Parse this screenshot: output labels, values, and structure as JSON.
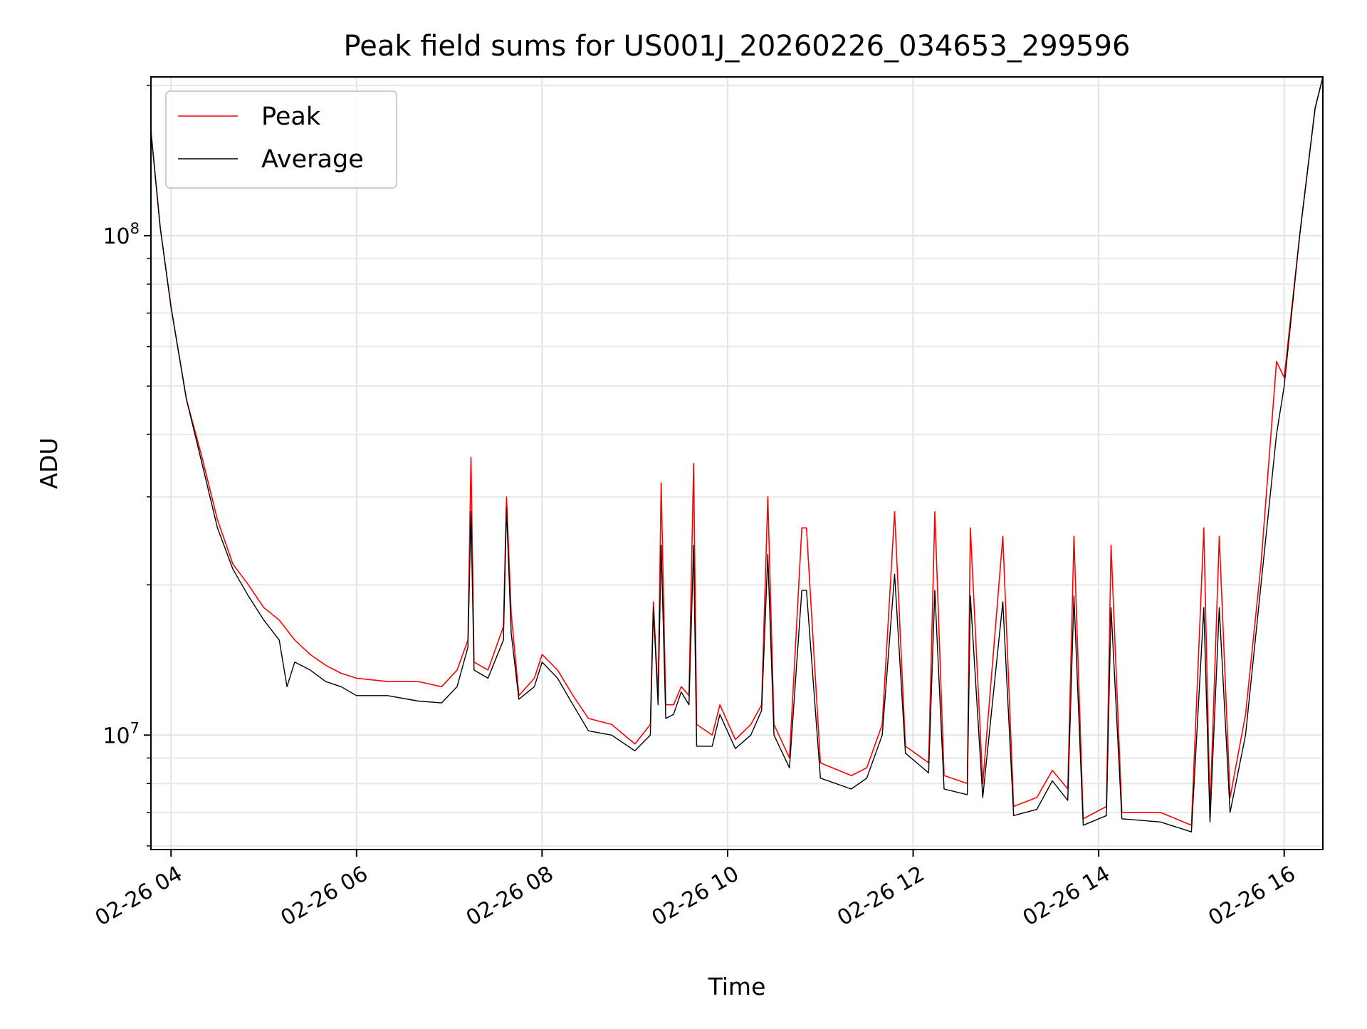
{
  "chart_data": {
    "type": "line",
    "title": "Peak field sums for US001J_20260226_034653_299596",
    "xlabel": "Time",
    "ylabel": "ADU",
    "x_scale": "time",
    "y_scale": "log",
    "xlim": [
      "2026-02-26T03:47",
      "2026-02-26T16:25"
    ],
    "ylim": [
      5900000,
      208000000
    ],
    "grid": true,
    "legend_position": "upper-left",
    "x_tick_labels": [
      {
        "t": "2026-02-26T04:00",
        "label": "02-26 04"
      },
      {
        "t": "2026-02-26T06:00",
        "label": "02-26 06"
      },
      {
        "t": "2026-02-26T08:00",
        "label": "02-26 08"
      },
      {
        "t": "2026-02-26T10:00",
        "label": "02-26 10"
      },
      {
        "t": "2026-02-26T12:00",
        "label": "02-26 12"
      },
      {
        "t": "2026-02-26T14:00",
        "label": "02-26 14"
      },
      {
        "t": "2026-02-26T16:00",
        "label": "02-26 16"
      }
    ],
    "y_major_ticks": [
      {
        "value": 10000000,
        "base": "10",
        "exp": "7"
      },
      {
        "value": 100000000,
        "base": "10",
        "exp": "8"
      }
    ],
    "y_minor_ticks": [
      6000000,
      7000000,
      8000000,
      9000000,
      20000000,
      30000000,
      40000000,
      50000000,
      60000000,
      70000000,
      80000000,
      90000000,
      200000000
    ],
    "series": [
      {
        "name": "Peak",
        "color": "#ff0000",
        "points": [
          [
            "2026-02-26T03:47",
            162000000
          ],
          [
            "2026-02-26T03:53",
            104000000
          ],
          [
            "2026-02-26T04:00",
            72000000
          ],
          [
            "2026-02-26T04:10",
            47000000
          ],
          [
            "2026-02-26T04:20",
            36000000
          ],
          [
            "2026-02-26T04:30",
            27000000
          ],
          [
            "2026-02-26T04:40",
            22000000
          ],
          [
            "2026-02-26T04:50",
            20000000
          ],
          [
            "2026-02-26T05:00",
            18000000
          ],
          [
            "2026-02-26T05:10",
            17000000
          ],
          [
            "2026-02-26T05:20",
            15500000
          ],
          [
            "2026-02-26T05:30",
            14500000
          ],
          [
            "2026-02-26T05:40",
            13800000
          ],
          [
            "2026-02-26T05:50",
            13300000
          ],
          [
            "2026-02-26T06:00",
            13000000
          ],
          [
            "2026-02-26T06:20",
            12800000
          ],
          [
            "2026-02-26T06:40",
            12800000
          ],
          [
            "2026-02-26T06:55",
            12500000
          ],
          [
            "2026-02-26T07:05",
            13500000
          ],
          [
            "2026-02-26T07:12",
            15500000
          ],
          [
            "2026-02-26T07:14",
            36000000
          ],
          [
            "2026-02-26T07:16",
            14000000
          ],
          [
            "2026-02-26T07:25",
            13500000
          ],
          [
            "2026-02-26T07:35",
            16500000
          ],
          [
            "2026-02-26T07:37",
            30000000
          ],
          [
            "2026-02-26T07:40",
            17500000
          ],
          [
            "2026-02-26T07:45",
            12000000
          ],
          [
            "2026-02-26T07:55",
            13000000
          ],
          [
            "2026-02-26T08:00",
            14500000
          ],
          [
            "2026-02-26T08:10",
            13500000
          ],
          [
            "2026-02-26T08:20",
            12000000
          ],
          [
            "2026-02-26T08:30",
            10800000
          ],
          [
            "2026-02-26T08:45",
            10500000
          ],
          [
            "2026-02-26T09:00",
            9600000
          ],
          [
            "2026-02-26T09:10",
            10500000
          ],
          [
            "2026-02-26T09:12",
            18500000
          ],
          [
            "2026-02-26T09:15",
            12000000
          ],
          [
            "2026-02-26T09:17",
            32000000
          ],
          [
            "2026-02-26T09:20",
            11500000
          ],
          [
            "2026-02-26T09:25",
            11500000
          ],
          [
            "2026-02-26T09:30",
            12500000
          ],
          [
            "2026-02-26T09:35",
            12000000
          ],
          [
            "2026-02-26T09:38",
            35000000
          ],
          [
            "2026-02-26T09:40",
            10500000
          ],
          [
            "2026-02-26T09:50",
            10000000
          ],
          [
            "2026-02-26T09:55",
            11500000
          ],
          [
            "2026-02-26T10:05",
            9800000
          ],
          [
            "2026-02-26T10:15",
            10500000
          ],
          [
            "2026-02-26T10:22",
            11500000
          ],
          [
            "2026-02-26T10:26",
            30000000
          ],
          [
            "2026-02-26T10:30",
            10500000
          ],
          [
            "2026-02-26T10:40",
            9000000
          ],
          [
            "2026-02-26T10:48",
            26000000
          ],
          [
            "2026-02-26T10:51",
            26000000
          ],
          [
            "2026-02-26T11:00",
            8800000
          ],
          [
            "2026-02-26T11:20",
            8300000
          ],
          [
            "2026-02-26T11:30",
            8600000
          ],
          [
            "2026-02-26T11:40",
            10500000
          ],
          [
            "2026-02-26T11:48",
            28000000
          ],
          [
            "2026-02-26T11:55",
            9500000
          ],
          [
            "2026-02-26T12:10",
            8800000
          ],
          [
            "2026-02-26T12:14",
            28000000
          ],
          [
            "2026-02-26T12:20",
            8300000
          ],
          [
            "2026-02-26T12:35",
            8000000
          ],
          [
            "2026-02-26T12:37",
            26000000
          ],
          [
            "2026-02-26T12:45",
            8000000
          ],
          [
            "2026-02-26T12:58",
            25000000
          ],
          [
            "2026-02-26T13:05",
            7200000
          ],
          [
            "2026-02-26T13:20",
            7500000
          ],
          [
            "2026-02-26T13:30",
            8500000
          ],
          [
            "2026-02-26T13:40",
            7800000
          ],
          [
            "2026-02-26T13:44",
            25000000
          ],
          [
            "2026-02-26T13:50",
            6800000
          ],
          [
            "2026-02-26T14:05",
            7200000
          ],
          [
            "2026-02-26T14:08",
            24000000
          ],
          [
            "2026-02-26T14:15",
            7000000
          ],
          [
            "2026-02-26T14:40",
            7000000
          ],
          [
            "2026-02-26T15:00",
            6600000
          ],
          [
            "2026-02-26T15:08",
            26000000
          ],
          [
            "2026-02-26T15:12",
            7000000
          ],
          [
            "2026-02-26T15:18",
            25000000
          ],
          [
            "2026-02-26T15:25",
            7500000
          ],
          [
            "2026-02-26T15:35",
            11000000
          ],
          [
            "2026-02-26T15:45",
            22000000
          ],
          [
            "2026-02-26T15:55",
            56000000
          ],
          [
            "2026-02-26T16:00",
            52000000
          ],
          [
            "2026-02-26T16:10",
            100000000
          ],
          [
            "2026-02-26T16:20",
            180000000
          ],
          [
            "2026-02-26T16:25",
            208000000
          ]
        ]
      },
      {
        "name": "Average",
        "color": "#000000",
        "points": [
          [
            "2026-02-26T03:47",
            162000000
          ],
          [
            "2026-02-26T03:53",
            104000000
          ],
          [
            "2026-02-26T04:00",
            72000000
          ],
          [
            "2026-02-26T04:10",
            47000000
          ],
          [
            "2026-02-26T04:20",
            35000000
          ],
          [
            "2026-02-26T04:30",
            26000000
          ],
          [
            "2026-02-26T04:40",
            21500000
          ],
          [
            "2026-02-26T04:50",
            19000000
          ],
          [
            "2026-02-26T05:00",
            17000000
          ],
          [
            "2026-02-26T05:10",
            15500000
          ],
          [
            "2026-02-26T05:15",
            12500000
          ],
          [
            "2026-02-26T05:20",
            14000000
          ],
          [
            "2026-02-26T05:30",
            13500000
          ],
          [
            "2026-02-26T05:40",
            12800000
          ],
          [
            "2026-02-26T05:50",
            12500000
          ],
          [
            "2026-02-26T06:00",
            12000000
          ],
          [
            "2026-02-26T06:20",
            12000000
          ],
          [
            "2026-02-26T06:40",
            11700000
          ],
          [
            "2026-02-26T06:55",
            11600000
          ],
          [
            "2026-02-26T07:05",
            12500000
          ],
          [
            "2026-02-26T07:12",
            15000000
          ],
          [
            "2026-02-26T07:14",
            28000000
          ],
          [
            "2026-02-26T07:16",
            13500000
          ],
          [
            "2026-02-26T07:25",
            13000000
          ],
          [
            "2026-02-26T07:35",
            15500000
          ],
          [
            "2026-02-26T07:37",
            28500000
          ],
          [
            "2026-02-26T07:40",
            16000000
          ],
          [
            "2026-02-26T07:45",
            11800000
          ],
          [
            "2026-02-26T07:55",
            12500000
          ],
          [
            "2026-02-26T08:00",
            14000000
          ],
          [
            "2026-02-26T08:10",
            13000000
          ],
          [
            "2026-02-26T08:20",
            11500000
          ],
          [
            "2026-02-26T08:30",
            10200000
          ],
          [
            "2026-02-26T08:45",
            10000000
          ],
          [
            "2026-02-26T09:00",
            9300000
          ],
          [
            "2026-02-26T09:10",
            10000000
          ],
          [
            "2026-02-26T09:12",
            18000000
          ],
          [
            "2026-02-26T09:15",
            11500000
          ],
          [
            "2026-02-26T09:17",
            24000000
          ],
          [
            "2026-02-26T09:20",
            10800000
          ],
          [
            "2026-02-26T09:25",
            11000000
          ],
          [
            "2026-02-26T09:30",
            12200000
          ],
          [
            "2026-02-26T09:35",
            11500000
          ],
          [
            "2026-02-26T09:38",
            24000000
          ],
          [
            "2026-02-26T09:40",
            9500000
          ],
          [
            "2026-02-26T09:50",
            9500000
          ],
          [
            "2026-02-26T09:55",
            11000000
          ],
          [
            "2026-02-26T10:05",
            9400000
          ],
          [
            "2026-02-26T10:15",
            10000000
          ],
          [
            "2026-02-26T10:22",
            11200000
          ],
          [
            "2026-02-26T10:26",
            23000000
          ],
          [
            "2026-02-26T10:30",
            10000000
          ],
          [
            "2026-02-26T10:40",
            8600000
          ],
          [
            "2026-02-26T10:48",
            19500000
          ],
          [
            "2026-02-26T10:51",
            19500000
          ],
          [
            "2026-02-26T11:00",
            8200000
          ],
          [
            "2026-02-26T11:20",
            7800000
          ],
          [
            "2026-02-26T11:30",
            8200000
          ],
          [
            "2026-02-26T11:40",
            10000000
          ],
          [
            "2026-02-26T11:48",
            21000000
          ],
          [
            "2026-02-26T11:55",
            9200000
          ],
          [
            "2026-02-26T12:10",
            8400000
          ],
          [
            "2026-02-26T12:14",
            19500000
          ],
          [
            "2026-02-26T12:20",
            7800000
          ],
          [
            "2026-02-26T12:35",
            7600000
          ],
          [
            "2026-02-26T12:37",
            19000000
          ],
          [
            "2026-02-26T12:45",
            7500000
          ],
          [
            "2026-02-26T12:58",
            18500000
          ],
          [
            "2026-02-26T13:05",
            6900000
          ],
          [
            "2026-02-26T13:20",
            7100000
          ],
          [
            "2026-02-26T13:30",
            8100000
          ],
          [
            "2026-02-26T13:40",
            7400000
          ],
          [
            "2026-02-26T13:44",
            19000000
          ],
          [
            "2026-02-26T13:50",
            6600000
          ],
          [
            "2026-02-26T14:05",
            6900000
          ],
          [
            "2026-02-26T14:08",
            18000000
          ],
          [
            "2026-02-26T14:15",
            6800000
          ],
          [
            "2026-02-26T14:40",
            6700000
          ],
          [
            "2026-02-26T15:00",
            6400000
          ],
          [
            "2026-02-26T15:08",
            18000000
          ],
          [
            "2026-02-26T15:12",
            6700000
          ],
          [
            "2026-02-26T15:18",
            18000000
          ],
          [
            "2026-02-26T15:25",
            7000000
          ],
          [
            "2026-02-26T15:35",
            10000000
          ],
          [
            "2026-02-26T15:45",
            20000000
          ],
          [
            "2026-02-26T15:55",
            40000000
          ],
          [
            "2026-02-26T16:00",
            50000000
          ],
          [
            "2026-02-26T16:10",
            100000000
          ],
          [
            "2026-02-26T16:20",
            180000000
          ],
          [
            "2026-02-26T16:25",
            208000000
          ]
        ]
      }
    ]
  }
}
